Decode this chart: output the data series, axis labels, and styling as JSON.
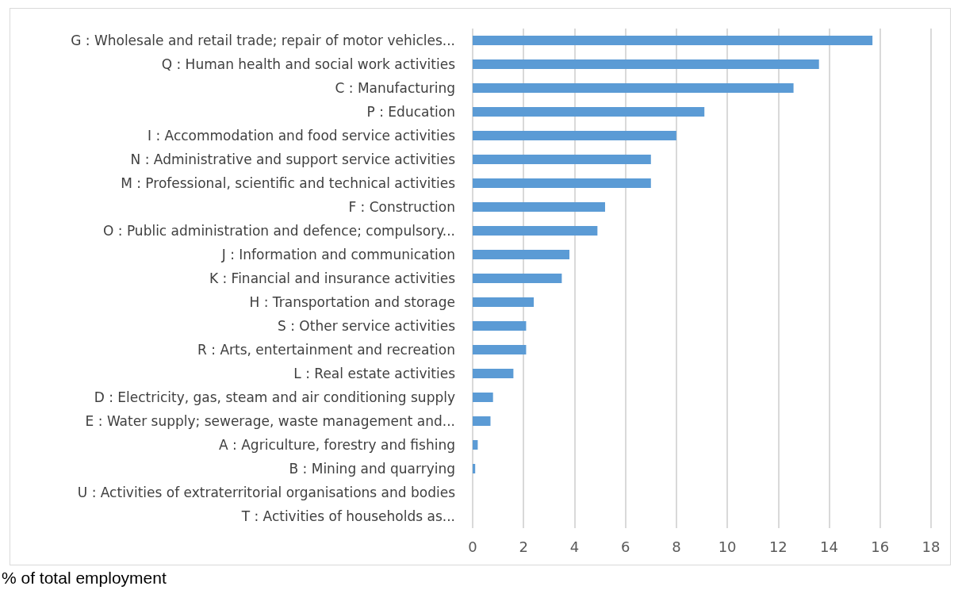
{
  "chart_data": {
    "type": "bar",
    "orientation": "horizontal",
    "xlabel": "% of total employment",
    "categories": [
      "G : Wholesale and retail trade; repair of motor vehicles...",
      "Q : Human health and social work activities",
      "C : Manufacturing",
      "P : Education",
      "I : Accommodation and food service activities",
      "N : Administrative and support service activities",
      "M : Professional, scientific and technical activities",
      "F : Construction",
      "O : Public administration and defence; compulsory...",
      "J : Information and communication",
      "K : Financial and insurance activities",
      "H : Transportation and storage",
      "S : Other service activities",
      "R : Arts, entertainment and recreation",
      "L : Real estate activities",
      "D : Electricity, gas, steam and air conditioning supply",
      "E : Water supply; sewerage, waste management and...",
      "A : Agriculture, forestry and fishing",
      "B : Mining and quarrying",
      "U : Activities of extraterritorial organisations and bodies",
      "T : Activities of households as..."
    ],
    "values": [
      15.7,
      13.6,
      12.6,
      9.1,
      8.0,
      7.0,
      7.0,
      5.2,
      4.9,
      3.8,
      3.5,
      2.4,
      2.1,
      2.1,
      1.6,
      0.8,
      0.7,
      0.2,
      0.1,
      0,
      0
    ],
    "color": "#5b9bd5",
    "xlim": [
      0,
      18
    ],
    "xticks": [
      0,
      2,
      4,
      6,
      8,
      10,
      12,
      14,
      16,
      18
    ],
    "grid": "x"
  }
}
